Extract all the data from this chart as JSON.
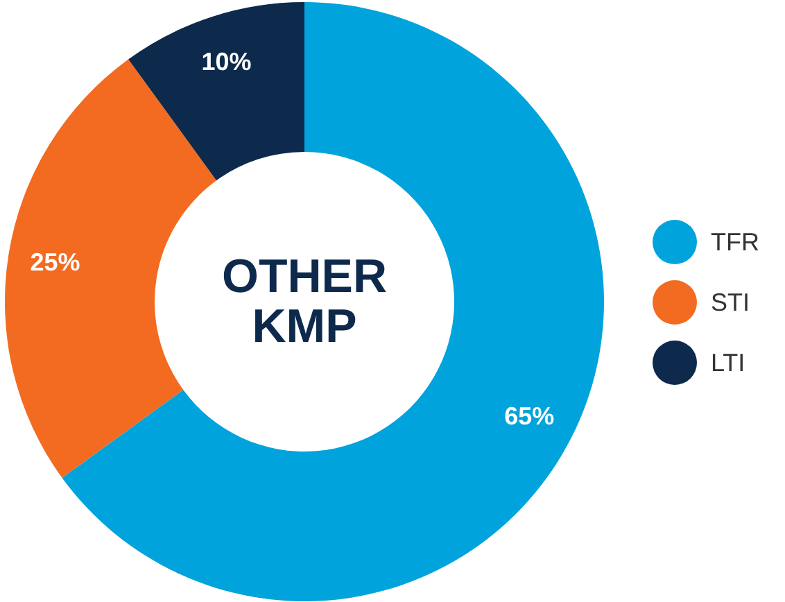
{
  "chart_data": {
    "type": "donut",
    "title": "OTHER KMP",
    "categories": [
      "TFR",
      "STI",
      "LTI"
    ],
    "values": [
      65,
      25,
      10
    ],
    "colors": [
      "#00a3dc",
      "#f26b21",
      "#0d2a4c"
    ],
    "value_labels": [
      "65%",
      "25%",
      "10%"
    ],
    "legend": "right"
  }
}
